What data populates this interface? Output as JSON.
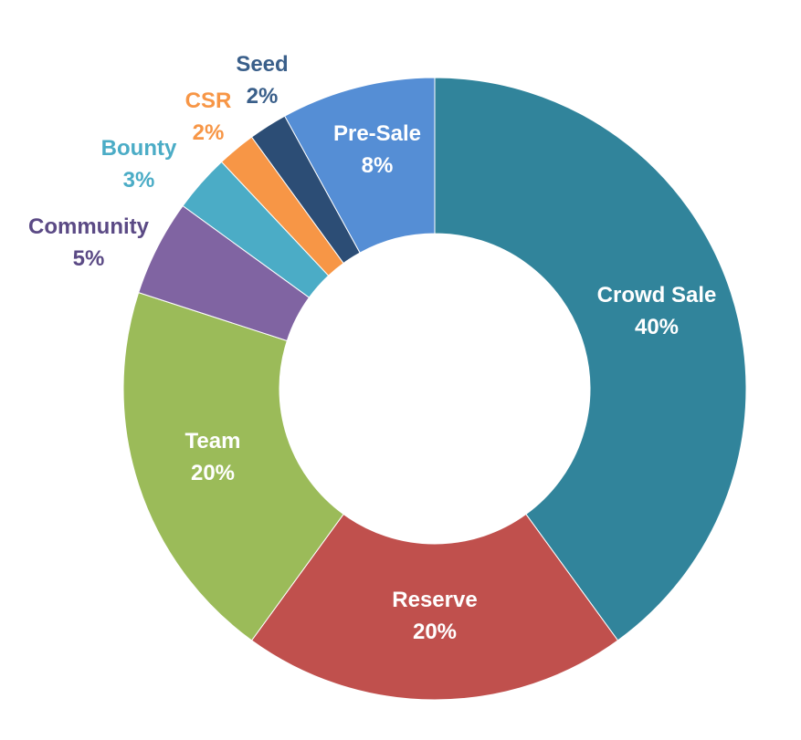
{
  "chart_data": {
    "type": "pie",
    "donut": true,
    "title": "",
    "legend": "none",
    "slices": [
      {
        "label": "Crowd Sale",
        "value": 40,
        "pct_label": "40%",
        "color": "#31849B",
        "text_color": "#FFFFFF",
        "label_position": "inside"
      },
      {
        "label": "Reserve",
        "value": 20,
        "pct_label": "20%",
        "color": "#C0504D",
        "text_color": "#FFFFFF",
        "label_position": "inside"
      },
      {
        "label": "Team",
        "value": 20,
        "pct_label": "20%",
        "color": "#9BBB59",
        "text_color": "#FFFFFF",
        "label_position": "inside"
      },
      {
        "label": "Community",
        "value": 5,
        "pct_label": "5%",
        "color": "#8064A2",
        "text_color": "#5B4A85",
        "label_position": "outside"
      },
      {
        "label": "Bounty",
        "value": 3,
        "pct_label": "3%",
        "color": "#4BACC6",
        "text_color": "#4BACC6",
        "label_position": "outside"
      },
      {
        "label": "CSR",
        "value": 2,
        "pct_label": "2%",
        "color": "#F79646",
        "text_color": "#F79646",
        "label_position": "outside"
      },
      {
        "label": "Seed",
        "value": 2,
        "pct_label": "2%",
        "color": "#2C4D75",
        "text_color": "#3A5F8A",
        "label_position": "outside"
      },
      {
        "label": "Pre-Sale",
        "value": 8,
        "pct_label": "8%",
        "color": "#558ED5",
        "text_color": "#FFFFFF",
        "label_position": "inside"
      }
    ]
  }
}
